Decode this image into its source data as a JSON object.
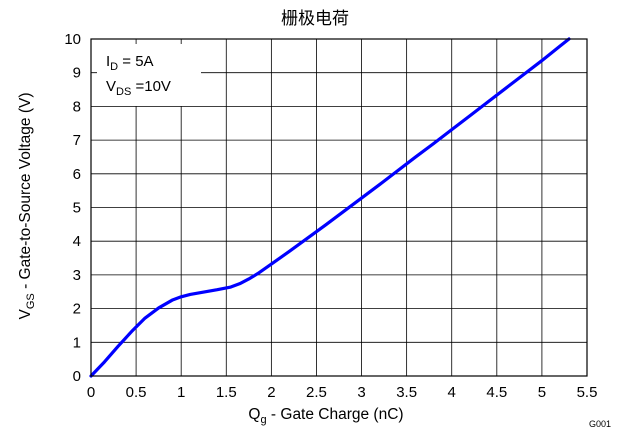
{
  "chart_data": {
    "type": "line",
    "title": "栅极电荷",
    "xlabel": {
      "main": "Q",
      "sub": "g",
      "rest": " - Gate Charge  (nC)"
    },
    "ylabel": {
      "main": "V",
      "sub": "GS",
      "rest": " - Gate-to-Source Voltage (V)"
    },
    "xlim": [
      0,
      5.5
    ],
    "ylim": [
      0,
      10
    ],
    "x_ticks": [
      0,
      0.5,
      1,
      1.5,
      2,
      2.5,
      3,
      3.5,
      4,
      4.5,
      5,
      5.5
    ],
    "x_tick_labels": [
      "0",
      "0.5",
      "1",
      "1.5",
      "2",
      "2.5",
      "3",
      "3.5",
      "4",
      "4.5",
      "5",
      "5.5"
    ],
    "y_ticks": [
      0,
      1,
      2,
      3,
      4,
      5,
      6,
      7,
      8,
      9,
      10
    ],
    "y_tick_labels": [
      "0",
      "1",
      "2",
      "3",
      "4",
      "5",
      "6",
      "7",
      "8",
      "9",
      "10"
    ],
    "grid": true,
    "legend_position": "top-left",
    "conditions": [
      {
        "main": "I",
        "sub": "D",
        "rest": " = 5A"
      },
      {
        "main": "V",
        "sub": "DS",
        "rest": " =10V"
      }
    ],
    "series": [
      {
        "color": "#0000ff",
        "x": [
          0,
          0.15,
          0.3,
          0.45,
          0.6,
          0.75,
          0.9,
          1.0,
          1.1,
          1.25,
          1.4,
          1.55,
          1.65,
          1.75,
          1.85,
          2.0,
          2.2,
          2.4,
          2.6,
          2.8,
          3.0,
          3.2,
          3.4,
          3.6,
          3.8,
          4.0,
          4.2,
          4.4,
          4.6,
          4.8,
          5.0,
          5.2,
          5.3
        ],
        "y": [
          0,
          0.42,
          0.88,
          1.32,
          1.72,
          2.02,
          2.25,
          2.35,
          2.42,
          2.49,
          2.56,
          2.64,
          2.74,
          2.88,
          3.04,
          3.32,
          3.7,
          4.09,
          4.48,
          4.88,
          5.28,
          5.68,
          6.09,
          6.5,
          6.9,
          7.31,
          7.72,
          8.13,
          8.54,
          8.95,
          9.36,
          9.79,
          10.0
        ]
      }
    ]
  },
  "figure_id": "G001",
  "colors": {
    "series_line": "#0000ff",
    "grid": "#000000",
    "frame": "#000000",
    "background": "#ffffff"
  }
}
